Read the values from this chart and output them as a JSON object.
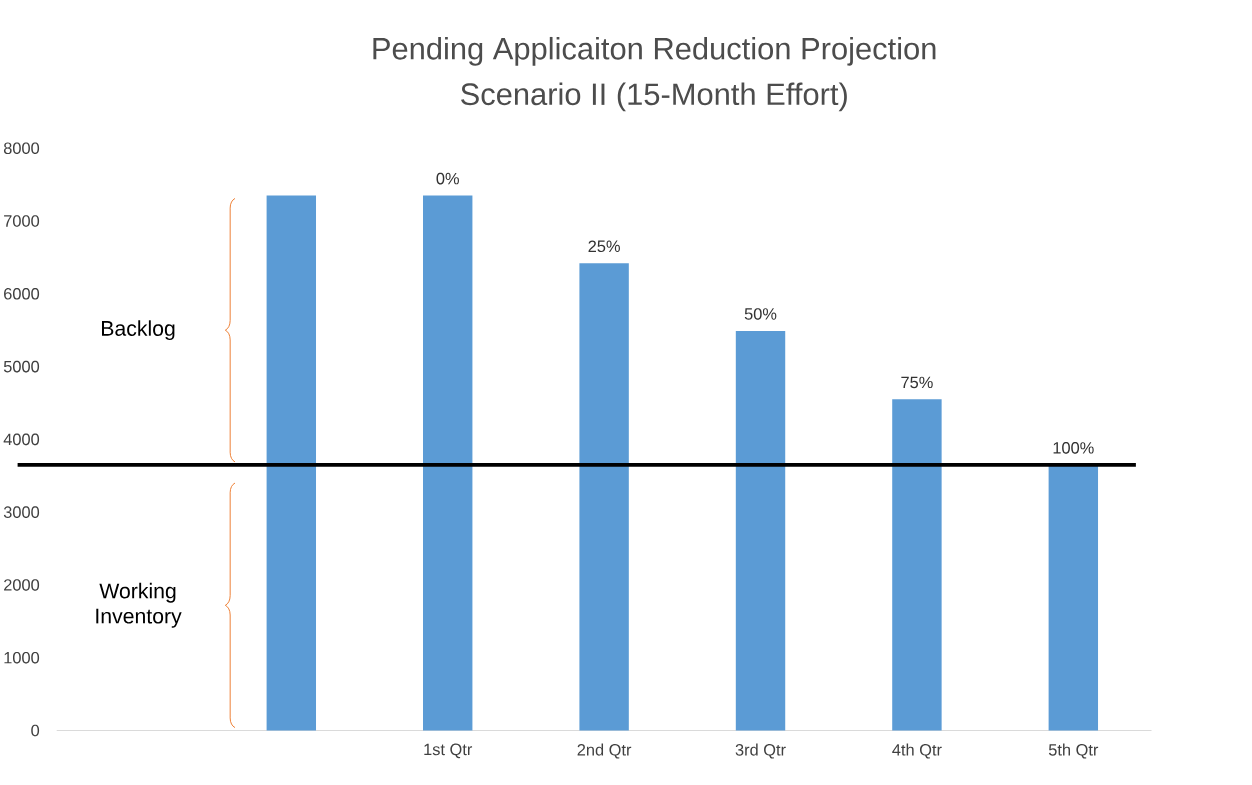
{
  "chart_data": {
    "type": "bar",
    "title": "Pending Applicaiton Reduction Projection",
    "subtitle": "Scenario II (15-Month Effort)",
    "categories": [
      null,
      null,
      "1st Qtr",
      "2nd Qtr",
      "3rd Qtr",
      "4th Qtr",
      "5th Qtr"
    ],
    "values": [
      null,
      7350,
      7350,
      6420,
      5490,
      4550,
      3650
    ],
    "color": "#5b9bd5",
    "ylim": [
      0,
      8000
    ],
    "yticks": [
      0,
      1000,
      2000,
      3000,
      4000,
      5000,
      6000,
      7000,
      8000
    ],
    "ref_lines": [
      {
        "axis": "y",
        "value": 3650,
        "color": "#000000"
      }
    ],
    "annotations": [
      "Backlog",
      "Working Inventory",
      {
        "text": "0%",
        "x": "1st Qtr",
        "y": 7350
      },
      {
        "text": "25%",
        "x": "2nd Qtr",
        "y": 6420
      },
      {
        "text": "50%",
        "x": "3rd Qtr",
        "y": 5490
      },
      {
        "text": "75%",
        "x": "4th Qtr",
        "y": 4550
      },
      {
        "text": "100%",
        "x": "5th Qtr",
        "y": 3650
      }
    ]
  }
}
